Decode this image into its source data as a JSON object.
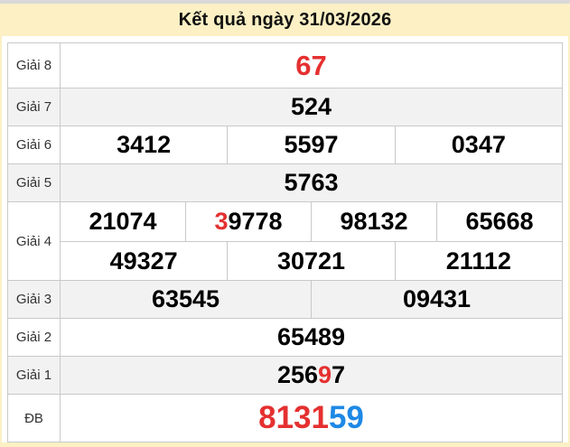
{
  "title": "Kết quả ngày 31/03/2026",
  "colors": {
    "accent_red": "#e53030",
    "accent_blue": "#1e88e5",
    "band_yellow": "#fcf0c4",
    "alt_row_gray": "#f2f2f2",
    "border_gray": "#c9c9c9"
  },
  "table": {
    "rows": [
      {
        "label": "Giải 8",
        "alt": false,
        "size": "lg",
        "subrows": [
          [
            [
              {
                "t": "67",
                "c": "red"
              }
            ]
          ]
        ]
      },
      {
        "label": "Giải 7",
        "alt": true,
        "size": "md",
        "subrows": [
          [
            [
              {
                "t": "524",
                "c": "black"
              }
            ]
          ]
        ]
      },
      {
        "label": "Giải 6",
        "alt": false,
        "size": "md",
        "subrows": [
          [
            [
              {
                "t": "3412",
                "c": "black"
              }
            ],
            [
              {
                "t": "5597",
                "c": "black"
              }
            ],
            [
              {
                "t": "0347",
                "c": "black"
              }
            ]
          ]
        ]
      },
      {
        "label": "Giải 5",
        "alt": true,
        "size": "md",
        "subrows": [
          [
            [
              {
                "t": "5763",
                "c": "black"
              }
            ]
          ]
        ]
      },
      {
        "label": "Giải 4",
        "alt": false,
        "size": "md",
        "subrows": [
          [
            [
              {
                "t": "21074",
                "c": "black"
              }
            ],
            [
              {
                "t": "3",
                "c": "red"
              },
              {
                "t": "9778",
                "c": "black"
              }
            ],
            [
              {
                "t": "98132",
                "c": "black"
              }
            ],
            [
              {
                "t": "65668",
                "c": "black"
              }
            ]
          ],
          [
            [
              {
                "t": "49327",
                "c": "black"
              }
            ],
            [
              {
                "t": "30721",
                "c": "black"
              }
            ],
            [
              {
                "t": "21112",
                "c": "black"
              }
            ]
          ]
        ]
      },
      {
        "label": "Giải 3",
        "alt": true,
        "size": "md",
        "subrows": [
          [
            [
              {
                "t": "63545",
                "c": "black"
              }
            ],
            [
              {
                "t": "09431",
                "c": "black"
              }
            ]
          ]
        ]
      },
      {
        "label": "Giải 2",
        "alt": false,
        "size": "md",
        "subrows": [
          [
            [
              {
                "t": "65489",
                "c": "black"
              }
            ]
          ]
        ]
      },
      {
        "label": "Giải 1",
        "alt": true,
        "size": "md",
        "subrows": [
          [
            [
              {
                "t": "256",
                "c": "black"
              },
              {
                "t": "9",
                "c": "red"
              },
              {
                "t": "7",
                "c": "black"
              }
            ]
          ]
        ]
      },
      {
        "label": "ĐB",
        "alt": false,
        "size": "xl",
        "subrows": [
          [
            [
              {
                "t": "8131",
                "c": "red"
              },
              {
                "t": "59",
                "c": "blue"
              }
            ]
          ]
        ]
      }
    ]
  }
}
